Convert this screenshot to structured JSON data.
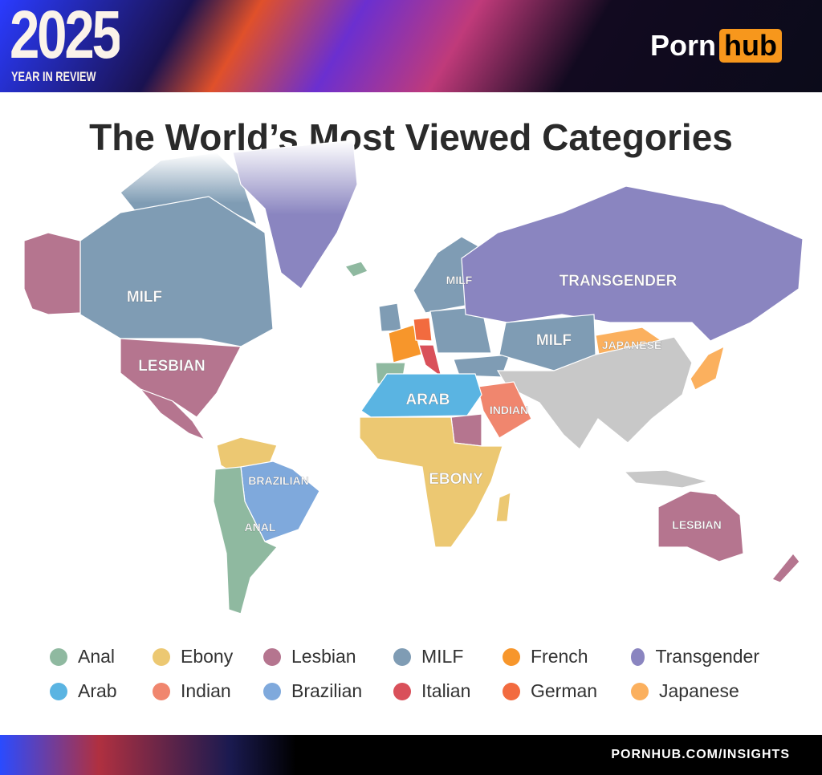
{
  "header": {
    "year": "2025",
    "subtitle": "YEAR IN REVIEW",
    "logo_left": "Porn",
    "logo_right": "hub"
  },
  "title": "The World’s Most Viewed Categories",
  "colors": {
    "Anal": "#8fb9a0",
    "Ebony": "#ecc872",
    "Lesbian": "#b5758f",
    "MILF": "#7f9cb4",
    "French": "#f7962b",
    "Transgender": "#8a85c0",
    "Arab": "#5ab4e2",
    "Indian": "#f0866e",
    "Brazilian": "#7fa9dc",
    "Italian": "#d9505a",
    "German": "#f26b3f",
    "Japanese": "#fbb05e",
    "No data": "#c8c8c8"
  },
  "map_labels": {
    "na": "MILF",
    "us": "LESBIAN",
    "br": "BRAZILIAN",
    "sa": "ANAL",
    "eu": "MILF",
    "ru": "TRANSGENDER",
    "ca": "MILF",
    "mn": "JAPANESE",
    "af_n": "ARAB",
    "me": "INDIAN",
    "af": "EBONY",
    "au": "LESBIAN"
  },
  "legend": [
    {
      "label": "Anal",
      "color": "#8fb9a0"
    },
    {
      "label": "Ebony",
      "color": "#ecc872"
    },
    {
      "label": "Lesbian",
      "color": "#b5758f"
    },
    {
      "label": "MILF",
      "color": "#7f9cb4"
    },
    {
      "label": "French",
      "color": "#f7962b"
    },
    {
      "label": "Transgender",
      "color": "#8a85c0"
    },
    {
      "label": "Arab",
      "color": "#5ab4e2"
    },
    {
      "label": "Indian",
      "color": "#f0866e"
    },
    {
      "label": "Brazilian",
      "color": "#7fa9dc"
    },
    {
      "label": "Italian",
      "color": "#d9505a"
    },
    {
      "label": "German",
      "color": "#f26b3f"
    },
    {
      "label": "Japanese",
      "color": "#fbb05e"
    }
  ],
  "footer": {
    "url": "PORNHUB.COM/INSIGHTS"
  }
}
